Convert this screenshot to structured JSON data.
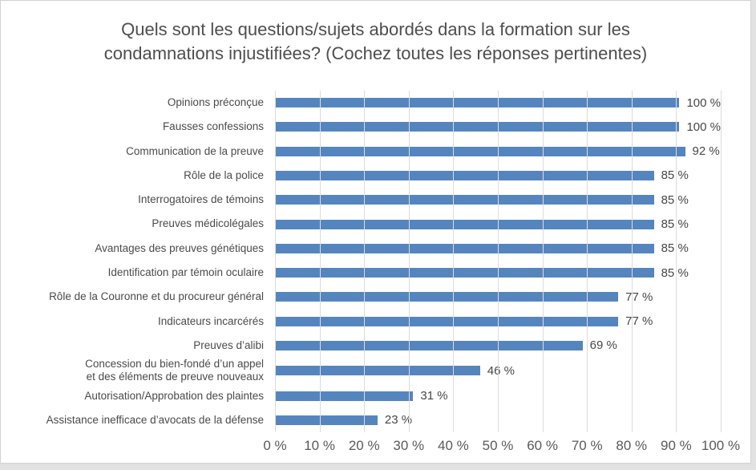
{
  "title": "Quels sont les questions/sujets abordés dans la formation sur les\ncondamnations injustifiées? (Cochez toutes les réponses pertinentes)",
  "colors": {
    "bar": "#5585BE",
    "gridline": "#dcdcdc",
    "title_text": "#4e4e4e",
    "label_text": "#4a4a4a",
    "tick_text": "#5a5a5a",
    "card_border": "#d2d2d2",
    "page_background": "#e2e2e2"
  },
  "chart_data": {
    "type": "bar",
    "orientation": "horizontal",
    "title": "Quels sont les questions/sujets abordés dans la formation sur les condamnations injustifiées? (Cochez toutes les réponses pertinentes)",
    "categories": [
      "Opinions préconçue",
      "Fausses confessions",
      "Communication de la preuve",
      "Rôle de la police",
      "Interrogatoires de témoins",
      "Preuves médicolégales",
      "Avantages des preuves génétiques",
      "Identification par témoin oculaire",
      "Rôle de la Couronne et du procureur général",
      "Indicateurs incarcérés",
      "Preuves d’alibi",
      "Concession du bien-fondé d’un appel\net des éléments de preuve nouveaux",
      "Autorisation/Approbation des plaintes",
      "Assistance inefficace d’avocats de la défense"
    ],
    "values": [
      100,
      100,
      92,
      85,
      85,
      85,
      85,
      85,
      77,
      77,
      69,
      46,
      31,
      23
    ],
    "value_labels": [
      "100 %",
      "100 %",
      "92 %",
      "85 %",
      "85 %",
      "85 %",
      "85 %",
      "85 %",
      "77 %",
      "77 %",
      "69 %",
      "46 %",
      "31 %",
      "23 %"
    ],
    "x_ticks": [
      "0 %",
      "10 %",
      "20 %",
      "30 %",
      "40 %",
      "50 %",
      "60 %",
      "70 %",
      "80 %",
      "90 %",
      "100 %"
    ],
    "x_tick_values": [
      0,
      10,
      20,
      30,
      40,
      50,
      60,
      70,
      80,
      90,
      100
    ],
    "xlabel": "",
    "ylabel": "",
    "xlim": [
      0,
      100
    ],
    "grid": "vertical-gridlines-on",
    "legend": "none",
    "bar_color": "#5585BE"
  }
}
